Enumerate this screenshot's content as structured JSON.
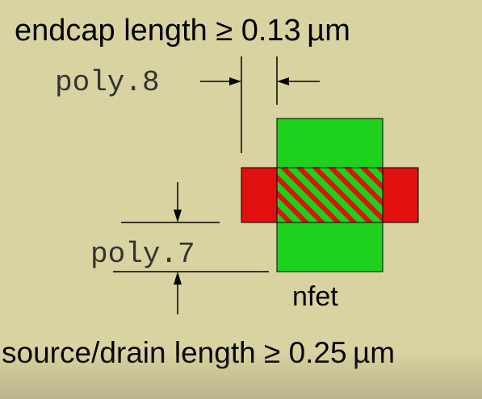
{
  "labels": {
    "endcap_rule": "endcap length ≥ 0.13 µm",
    "poly8": "poly.8",
    "poly7": "poly.7",
    "nfet": "nfet",
    "sd_rule": "source/drain length ≥ 0.25 µm"
  },
  "colors": {
    "background": "#d9d3a2",
    "diffusion_green": "#1ed11e",
    "poly_red": "#e01010",
    "outline": "#000000"
  }
}
